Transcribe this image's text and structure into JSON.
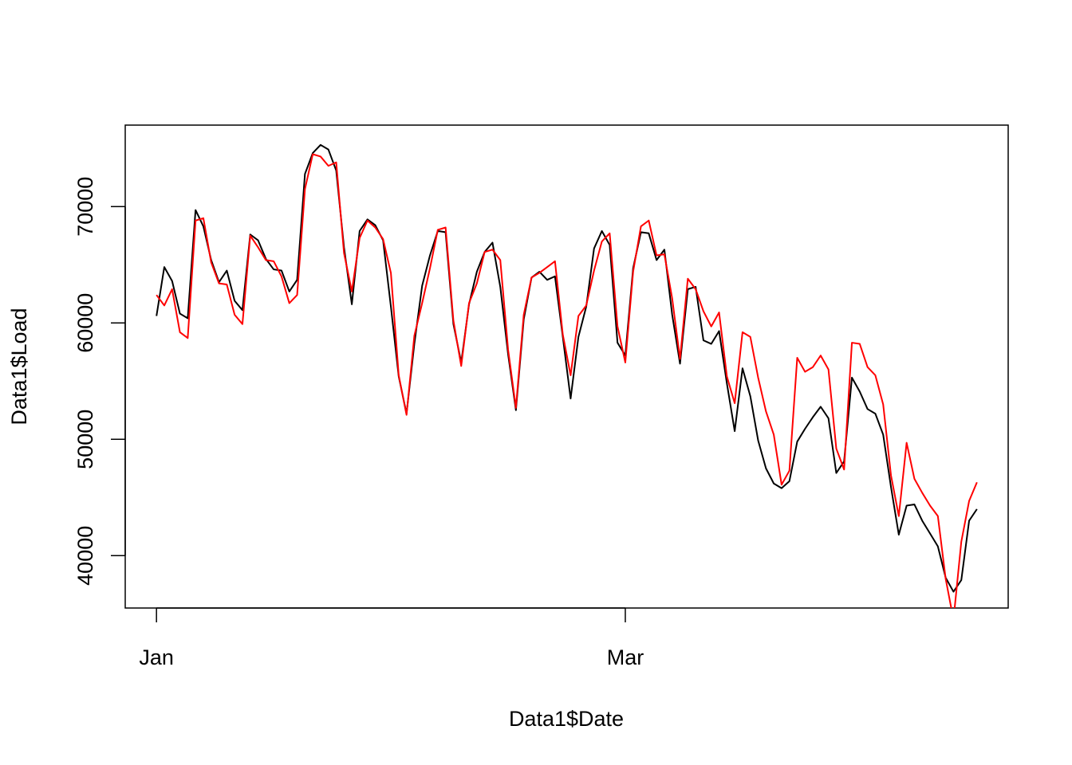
{
  "chart_data": {
    "type": "line",
    "title": "",
    "xlabel": "Data1$Date",
    "ylabel": "Data1$Load",
    "grid": false,
    "legend": "none",
    "x_type": "date",
    "x": [
      "2020-01-01",
      "2020-01-02",
      "2020-01-03",
      "2020-01-04",
      "2020-01-05",
      "2020-01-06",
      "2020-01-07",
      "2020-01-08",
      "2020-01-09",
      "2020-01-10",
      "2020-01-11",
      "2020-01-12",
      "2020-01-13",
      "2020-01-14",
      "2020-01-15",
      "2020-01-16",
      "2020-01-17",
      "2020-01-18",
      "2020-01-19",
      "2020-01-20",
      "2020-01-21",
      "2020-01-22",
      "2020-01-23",
      "2020-01-24",
      "2020-01-25",
      "2020-01-26",
      "2020-01-27",
      "2020-01-28",
      "2020-01-29",
      "2020-01-30",
      "2020-01-31",
      "2020-02-01",
      "2020-02-02",
      "2020-02-03",
      "2020-02-04",
      "2020-02-05",
      "2020-02-06",
      "2020-02-07",
      "2020-02-08",
      "2020-02-09",
      "2020-02-10",
      "2020-02-11",
      "2020-02-12",
      "2020-02-13",
      "2020-02-14",
      "2020-02-15",
      "2020-02-16",
      "2020-02-17",
      "2020-02-18",
      "2020-02-19",
      "2020-02-20",
      "2020-02-21",
      "2020-02-22",
      "2020-02-23",
      "2020-02-24",
      "2020-02-25",
      "2020-02-26",
      "2020-02-27",
      "2020-02-28",
      "2020-02-29",
      "2020-03-01",
      "2020-03-02",
      "2020-03-03",
      "2020-03-04",
      "2020-03-05",
      "2020-03-06",
      "2020-03-07",
      "2020-03-08",
      "2020-03-09",
      "2020-03-10",
      "2020-03-11",
      "2020-03-12",
      "2020-03-13",
      "2020-03-14",
      "2020-03-15",
      "2020-03-16",
      "2020-03-17",
      "2020-03-18",
      "2020-03-19",
      "2020-03-20",
      "2020-03-21",
      "2020-03-22",
      "2020-03-23",
      "2020-03-24",
      "2020-03-25",
      "2020-03-26",
      "2020-03-27",
      "2020-03-28",
      "2020-03-29",
      "2020-03-30",
      "2020-03-31",
      "2020-04-01",
      "2020-04-02",
      "2020-04-03",
      "2020-04-04",
      "2020-04-05",
      "2020-04-06",
      "2020-04-07",
      "2020-04-08",
      "2020-04-09",
      "2020-04-10",
      "2020-04-11",
      "2020-04-12",
      "2020-04-13",
      "2020-04-14",
      "2020-04-15"
    ],
    "xlim": [
      "2019-12-28",
      "2020-04-19"
    ],
    "ylim": [
      35500,
      77000
    ],
    "x_ticks": [
      {
        "date": "2020-01-01",
        "label": "Jan"
      },
      {
        "date": "2020-03-01",
        "label": "Mar"
      }
    ],
    "y_ticks": [
      40000,
      50000,
      60000,
      70000
    ],
    "series": [
      {
        "color": "#000000",
        "values": [
          60600,
          64800,
          63600,
          60800,
          60400,
          69700,
          68300,
          65400,
          63500,
          64500,
          61900,
          61100,
          67600,
          67100,
          65500,
          64600,
          64500,
          62700,
          63700,
          72800,
          74600,
          75300,
          74900,
          73100,
          66500,
          61600,
          67900,
          68900,
          68400,
          67100,
          61400,
          55400,
          52200,
          58200,
          63200,
          65800,
          67900,
          67800,
          59900,
          56600,
          61600,
          64400,
          66100,
          66900,
          63100,
          57300,
          52500,
          60300,
          63900,
          64400,
          63700,
          64000,
          58800,
          53500,
          58800,
          61400,
          66400,
          67900,
          66700,
          58300,
          57200,
          64700,
          67800,
          67700,
          65400,
          66300,
          60700,
          56500,
          62900,
          63100,
          58500,
          58200,
          59300,
          54800,
          50700,
          56100,
          53700,
          49900,
          47500,
          46200,
          45800,
          46400,
          49800,
          50900,
          51900,
          52800,
          51800,
          47100,
          48100,
          55300,
          54100,
          52600,
          52200,
          50400,
          45900,
          41800,
          44300,
          44400,
          43000,
          41900,
          40800,
          38100,
          36900,
          37900,
          43000,
          44000
        ]
      },
      {
        "color": "#ff0000",
        "values": [
          62400,
          61500,
          62900,
          59200,
          58700,
          68800,
          69000,
          65200,
          63400,
          63300,
          60700,
          59900,
          67500,
          66500,
          65400,
          65300,
          64000,
          61700,
          62400,
          71500,
          74500,
          74300,
          73500,
          73800,
          66000,
          62700,
          67300,
          68800,
          68200,
          67200,
          64300,
          55500,
          52100,
          58900,
          61700,
          64700,
          68000,
          68200,
          60200,
          56300,
          61700,
          63400,
          66100,
          66300,
          65400,
          57700,
          52700,
          60700,
          63900,
          64300,
          64800,
          65300,
          59000,
          55500,
          60600,
          61500,
          64500,
          67000,
          67700,
          59700,
          56600,
          64400,
          68300,
          68800,
          65800,
          65900,
          62100,
          56900,
          63800,
          62900,
          61000,
          59700,
          60900,
          55400,
          53100,
          59200,
          58800,
          55300,
          52400,
          50400,
          46100,
          47300,
          57000,
          55800,
          56200,
          57200,
          56000,
          49200,
          47400,
          58300,
          58200,
          56200,
          55500,
          53000,
          46900,
          43400,
          49700,
          46600,
          45400,
          44300,
          43400,
          38000,
          34500,
          41200,
          44700,
          46300
        ]
      }
    ]
  }
}
